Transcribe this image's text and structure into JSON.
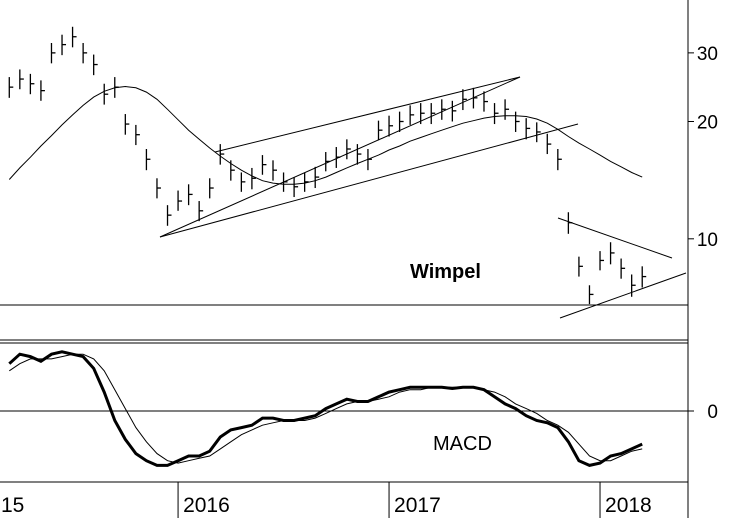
{
  "chart_data": [
    {
      "type": "ohlc",
      "annotation": "Wimpel",
      "log_scale": true,
      "color": "#000000",
      "xlim": [
        2015.156,
        2018.417
      ],
      "ylim": [
        5.5,
        41
      ],
      "yticks": [
        10,
        20,
        30
      ],
      "x": [
        2015.2,
        2015.25,
        2015.3,
        2015.35,
        2015.4,
        2015.45,
        2015.5,
        2015.55,
        2015.6,
        2015.65,
        2015.7,
        2015.75,
        2015.8,
        2015.85,
        2015.9,
        2015.95,
        2016,
        2016.05,
        2016.1,
        2016.15,
        2016.2,
        2016.25,
        2016.3,
        2016.35,
        2016.4,
        2016.45,
        2016.5,
        2016.55,
        2016.6,
        2016.65,
        2016.7,
        2016.75,
        2016.8,
        2016.85,
        2016.9,
        2016.95,
        2017,
        2017.05,
        2017.1,
        2017.15,
        2017.2,
        2017.25,
        2017.3,
        2017.35,
        2017.4,
        2017.45,
        2017.5,
        2017.55,
        2017.6,
        2017.65,
        2017.7,
        2017.75,
        2017.8,
        2017.85,
        2017.9,
        2017.95,
        2018,
        2018.05,
        2018.1,
        2018.15,
        2018.2
      ],
      "high": [
        26,
        27.2,
        26.5,
        25.5,
        31.8,
        33.4,
        35,
        31.8,
        29.7,
        25,
        26,
        20.9,
        19.6,
        17,
        14.3,
        12.2,
        13.3,
        13.8,
        12.5,
        14.3,
        17.5,
        15.9,
        14.8,
        15.2,
        16.4,
        15.9,
        14.8,
        14.4,
        14.8,
        15.3,
        16.7,
        17.2,
        18,
        17.5,
        17,
        20.1,
        20.7,
        21.2,
        22,
        22.3,
        22.3,
        22.8,
        22.6,
        24.2,
        24.4,
        23.9,
        22.3,
        22.8,
        21.2,
        20.4,
        19.9,
        18.6,
        17,
        11.7,
        9,
        7.6,
        9.3,
        9.8,
        8.9,
        8.1,
        8.5
      ],
      "low": [
        23,
        24.2,
        23.5,
        22.6,
        28.2,
        29.6,
        31,
        28.2,
        26.3,
        22.1,
        23,
        18.5,
        17.4,
        15,
        12.7,
        10.8,
        11.8,
        12.2,
        11.1,
        12.7,
        15.5,
        14.1,
        13.2,
        13.4,
        14.6,
        14.1,
        13.2,
        12.8,
        13.2,
        13.5,
        14.9,
        15.2,
        16,
        15.5,
        15,
        17.9,
        18.3,
        18.8,
        19.6,
        19.7,
        19.7,
        20.2,
        20,
        21.4,
        21.6,
        21.2,
        19.7,
        20.2,
        18.8,
        18,
        17.7,
        16.5,
        15,
        10.3,
        8,
        6.8,
        8.3,
        8.6,
        7.9,
        7.1,
        7.5
      ],
      "close": [
        24.5,
        25.7,
        25,
        24,
        30,
        31.5,
        33,
        30,
        28,
        23.5,
        24.5,
        19.7,
        18.5,
        16,
        13.5,
        11.5,
        12.5,
        13,
        11.8,
        13.5,
        16.5,
        15,
        14,
        14.3,
        15.5,
        15,
        14,
        13.6,
        14,
        14.4,
        15.8,
        16.2,
        17,
        16.5,
        16,
        19,
        19.5,
        20,
        20.8,
        21,
        21,
        21.5,
        21.3,
        22.8,
        23,
        22.5,
        21,
        21.5,
        20,
        19.2,
        18.8,
        17.5,
        16,
        11,
        8.5,
        7.2,
        8.8,
        9.2,
        8.4,
        7.6,
        8
      ],
      "moving_average": [
        14.2,
        15.2,
        16.2,
        17.3,
        18.4,
        19.6,
        20.8,
        22,
        23.1,
        23.9,
        24.4,
        24.6,
        24.4,
        23.8,
        22.8,
        21.5,
        20.2,
        19,
        18,
        17.1,
        16.3,
        15.6,
        15,
        14.5,
        14.1,
        13.9,
        13.8,
        13.8,
        13.9,
        14.1,
        14.4,
        14.8,
        15.2,
        15.6,
        16,
        16.4,
        16.9,
        17.3,
        17.8,
        18.2,
        18.6,
        19,
        19.4,
        19.8,
        20.1,
        20.4,
        20.6,
        20.7,
        20.7,
        20.6,
        20.3,
        19.8,
        19.1,
        18.3,
        17.6,
        17,
        16.4,
        15.8,
        15.3,
        14.8,
        14.4
      ]
    },
    {
      "type": "line",
      "label": "MACD",
      "xlim": [
        2015.156,
        2018.417
      ],
      "ylim": [
        -3,
        3
      ],
      "yticks": [
        0
      ],
      "xticks": [
        {
          "value": 2015,
          "label": "15"
        },
        2016,
        2017,
        2018
      ],
      "x": [
        2015.2,
        2015.25,
        2015.3,
        2015.35,
        2015.4,
        2015.45,
        2015.5,
        2015.55,
        2015.6,
        2015.65,
        2015.7,
        2015.75,
        2015.8,
        2015.85,
        2015.9,
        2015.95,
        2016,
        2016.05,
        2016.1,
        2016.15,
        2016.2,
        2016.25,
        2016.3,
        2016.35,
        2016.4,
        2016.45,
        2016.5,
        2016.55,
        2016.6,
        2016.65,
        2016.7,
        2016.75,
        2016.8,
        2016.85,
        2016.9,
        2016.95,
        2017,
        2017.05,
        2017.1,
        2017.15,
        2017.2,
        2017.25,
        2017.3,
        2017.35,
        2017.4,
        2017.45,
        2017.5,
        2017.55,
        2017.6,
        2017.65,
        2017.7,
        2017.75,
        2017.8,
        2017.85,
        2017.9,
        2017.95,
        2018,
        2018.05,
        2018.1,
        2018.15,
        2018.2
      ],
      "series": [
        {
          "color": "#000000",
          "values": [
            2.0,
            2.4,
            2.3,
            2.1,
            2.4,
            2.5,
            2.4,
            2.3,
            1.8,
            0.8,
            -0.4,
            -1.2,
            -1.8,
            -2.1,
            -2.3,
            -2.3,
            -2.1,
            -1.9,
            -1.9,
            -1.7,
            -1.1,
            -0.8,
            -0.7,
            -0.6,
            -0.3,
            -0.3,
            -0.4,
            -0.4,
            -0.3,
            -0.2,
            0.1,
            0.3,
            0.5,
            0.4,
            0.4,
            0.6,
            0.8,
            0.9,
            1.0,
            1.0,
            1.0,
            1.0,
            0.95,
            1.0,
            1.0,
            0.9,
            0.6,
            0.3,
            0.1,
            -0.2,
            -0.4,
            -0.5,
            -0.7,
            -1.3,
            -2.1,
            -2.3,
            -2.2,
            -1.9,
            -1.8,
            -1.6,
            -1.4
          ]
        },
        {
          "color": "#000000",
          "values": [
            1.7,
            2.0,
            2.2,
            2.2,
            2.2,
            2.3,
            2.4,
            2.4,
            2.2,
            1.7,
            0.9,
            0.1,
            -0.7,
            -1.3,
            -1.8,
            -2.1,
            -2.2,
            -2.1,
            -2.0,
            -1.9,
            -1.6,
            -1.3,
            -1.0,
            -0.8,
            -0.6,
            -0.5,
            -0.4,
            -0.4,
            -0.4,
            -0.3,
            -0.1,
            0.1,
            0.3,
            0.4,
            0.4,
            0.5,
            0.6,
            0.8,
            0.9,
            0.9,
            1.0,
            1.0,
            1.0,
            1.0,
            1.0,
            0.9,
            0.8,
            0.6,
            0.3,
            0.1,
            -0.1,
            -0.4,
            -0.6,
            -0.9,
            -1.4,
            -1.9,
            -2.1,
            -2.1,
            -1.9,
            -1.7,
            -1.6
          ]
        }
      ]
    }
  ]
}
